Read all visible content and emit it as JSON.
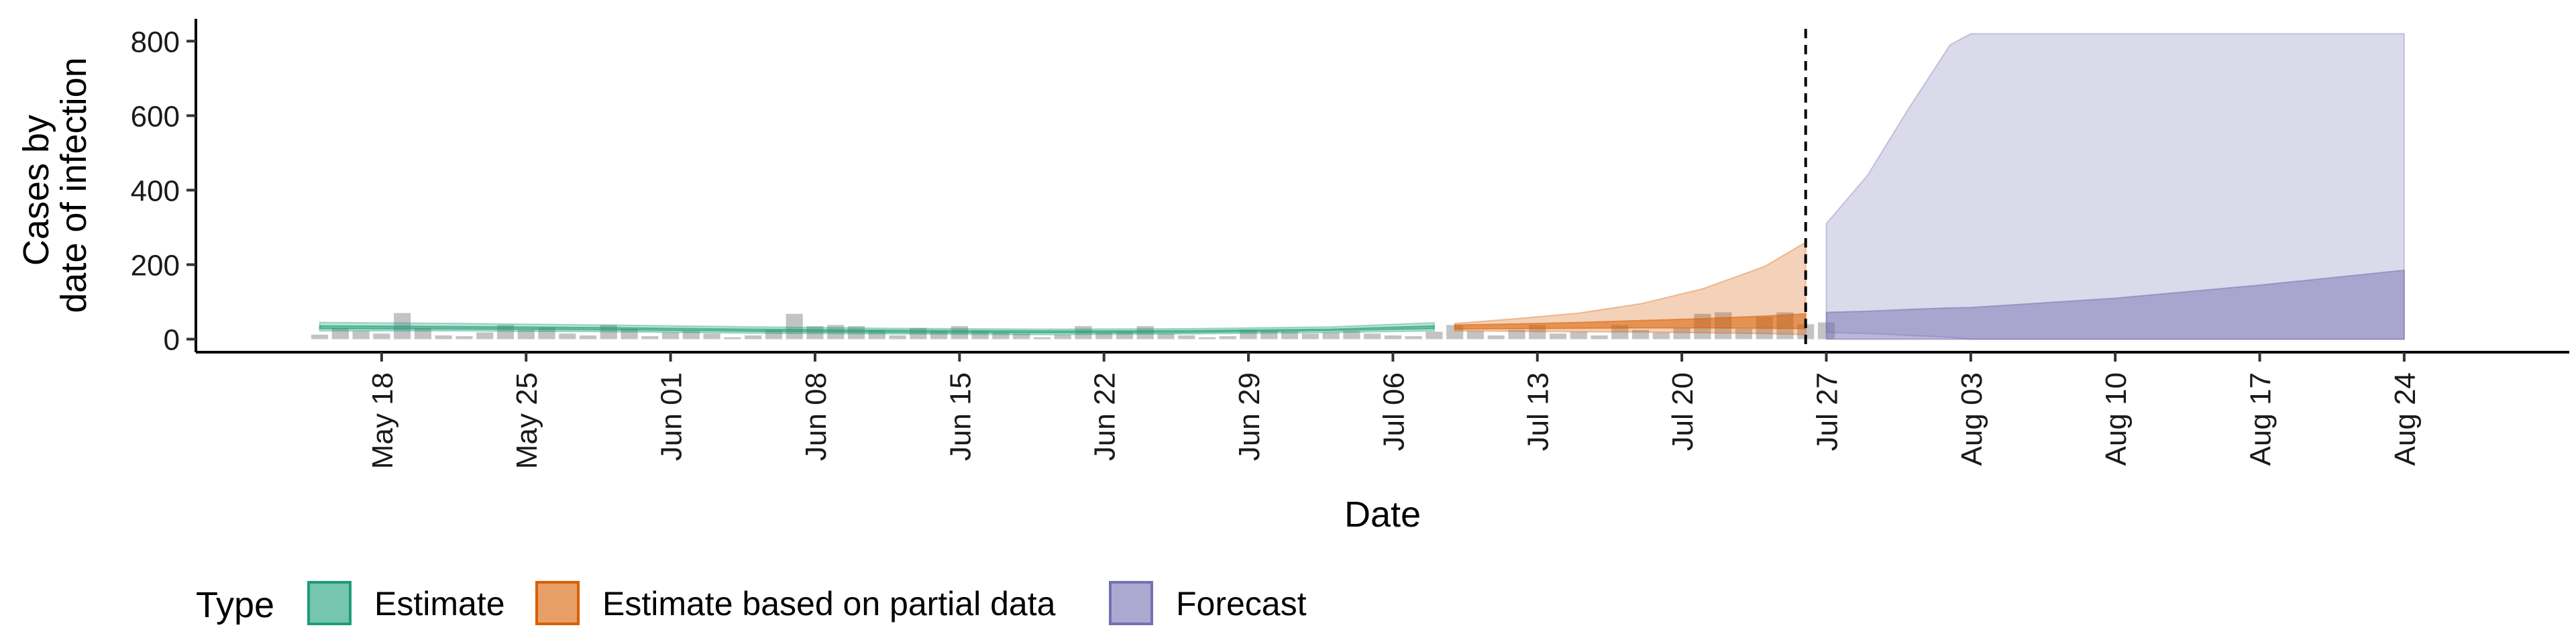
{
  "chart_data": {
    "type": "area",
    "xlabel": "Date",
    "ylabel_lines": [
      "Cases by",
      "date of infection"
    ],
    "ylim": [
      -35,
      860
    ],
    "yticks": [
      0,
      200,
      400,
      600,
      800
    ],
    "xlim": [
      "2020-05-09",
      "2020-09-01"
    ],
    "xtick_labels": [
      {
        "date": "2020-05-18",
        "label": "May 18"
      },
      {
        "date": "2020-05-25",
        "label": "May 25"
      },
      {
        "date": "2020-06-01",
        "label": "Jun 01"
      },
      {
        "date": "2020-06-08",
        "label": "Jun 08"
      },
      {
        "date": "2020-06-15",
        "label": "Jun 15"
      },
      {
        "date": "2020-06-22",
        "label": "Jun 22"
      },
      {
        "date": "2020-06-29",
        "label": "Jun 29"
      },
      {
        "date": "2020-07-06",
        "label": "Jul 06"
      },
      {
        "date": "2020-07-13",
        "label": "Jul 13"
      },
      {
        "date": "2020-07-20",
        "label": "Jul 20"
      },
      {
        "date": "2020-07-27",
        "label": "Jul 27"
      },
      {
        "date": "2020-08-03",
        "label": "Aug 03"
      },
      {
        "date": "2020-08-10",
        "label": "Aug 10"
      },
      {
        "date": "2020-08-17",
        "label": "Aug 17"
      },
      {
        "date": "2020-08-24",
        "label": "Aug 24"
      }
    ],
    "forecast_cutoff": "2020-07-26",
    "reported_cases": {
      "start_date": "2020-05-15",
      "values": [
        12,
        30,
        22,
        15,
        70,
        30,
        10,
        8,
        18,
        38,
        25,
        32,
        15,
        10,
        38,
        28,
        8,
        18,
        22,
        15,
        5,
        10,
        25,
        68,
        35,
        38,
        35,
        25,
        10,
        30,
        22,
        35,
        22,
        18,
        15,
        5,
        12,
        35,
        18,
        20,
        35,
        15,
        10,
        5,
        8,
        25,
        22,
        20,
        15,
        18,
        22,
        15,
        10,
        8,
        20,
        38,
        22,
        10,
        25,
        38,
        15,
        20,
        10,
        38,
        25,
        18,
        30,
        68,
        72,
        28,
        60,
        72,
        40,
        45
      ]
    },
    "series": [
      {
        "name": "Estimate",
        "color": "#1b9e77",
        "dates": [
          "2020-05-15",
          "2020-05-22",
          "2020-05-29",
          "2020-06-05",
          "2020-06-12",
          "2020-06-19",
          "2020-06-26",
          "2020-07-03",
          "2020-07-08"
        ],
        "outer_lower": [
          22,
          22,
          20,
          16,
          14,
          12,
          14,
          18,
          22
        ],
        "outer_upper": [
          45,
          42,
          38,
          33,
          29,
          27,
          28,
          33,
          44
        ],
        "inner_lower": [
          28,
          27,
          25,
          21,
          18,
          17,
          18,
          23,
          28
        ],
        "inner_upper": [
          36,
          34,
          31,
          27,
          24,
          22,
          23,
          27,
          36
        ]
      },
      {
        "name": "Estimate based on partial data",
        "color": "#d95f02",
        "dates": [
          "2020-07-09",
          "2020-07-12",
          "2020-07-15",
          "2020-07-18",
          "2020-07-21",
          "2020-07-24",
          "2020-07-26"
        ],
        "outer_lower": [
          22,
          21,
          20,
          19,
          17,
          15,
          12
        ],
        "outer_upper": [
          42,
          55,
          70,
          95,
          135,
          195,
          260
        ],
        "inner_lower": [
          27,
          28,
          29,
          30,
          30,
          29,
          28
        ],
        "inner_upper": [
          38,
          41,
          45,
          50,
          55,
          62,
          68
        ]
      },
      {
        "name": "Forecast",
        "color": "#7570b3",
        "dates": [
          "2020-07-27",
          "2020-07-29",
          "2020-07-31",
          "2020-08-02",
          "2020-08-03",
          "2020-08-10",
          "2020-08-17",
          "2020-08-24"
        ],
        "outer_lower": [
          18,
          15,
          10,
          5,
          0,
          0,
          0,
          0
        ],
        "outer_upper": [
          310,
          440,
          620,
          790,
          820,
          820,
          820,
          820
        ],
        "inner_lower": [
          0,
          0,
          0,
          0,
          0,
          0,
          0,
          0
        ],
        "inner_upper": [
          72,
          75,
          80,
          84,
          85,
          110,
          145,
          185
        ]
      }
    ],
    "legend": {
      "title": "Type",
      "placement": "bottom-left",
      "items": [
        {
          "label": "Estimate",
          "color": "#1b9e77"
        },
        {
          "label": "Estimate based on partial data",
          "color": "#d95f02"
        },
        {
          "label": "Forecast",
          "color": "#7570b3"
        }
      ]
    }
  }
}
